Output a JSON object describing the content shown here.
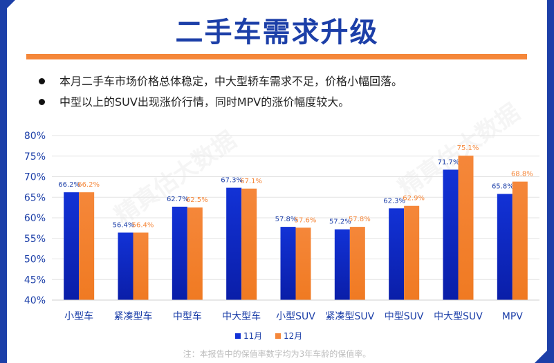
{
  "page": {
    "title": "二手车需求升级",
    "bullets": [
      "本月二手车市场价格总体稳定，中大型轿车需求不足，价格小幅回落。",
      "中型以上的SUV出现涨价行情，同时MPV的涨价幅度较大。"
    ],
    "footnote": "注：本报告中的保值率数字均为3年车龄的保值率。",
    "watermark": "精真估大数据"
  },
  "colors": {
    "brand": "#1c3fa8",
    "accent": "#f5873a",
    "series_blue": "#1232d6",
    "series_orange": "#f5873a"
  },
  "chart_data": {
    "type": "bar",
    "categories": [
      "小型车",
      "紧凑型车",
      "中型车",
      "中大型车",
      "小型SUV",
      "紧凑型SUV",
      "中型SUV",
      "中大型SUV",
      "MPV"
    ],
    "series": [
      {
        "name": "11月",
        "values": [
          66.2,
          56.4,
          62.7,
          67.3,
          57.8,
          57.2,
          62.3,
          71.7,
          65.8
        ],
        "color": "#1232d6"
      },
      {
        "name": "12月",
        "values": [
          66.2,
          56.4,
          62.5,
          67.1,
          57.6,
          57.8,
          62.9,
          75.1,
          68.8
        ],
        "color": "#f5873a"
      }
    ],
    "yticks": [
      "40%",
      "45%",
      "50%",
      "55%",
      "60%",
      "65%",
      "70%",
      "75%",
      "80%"
    ],
    "ylim": [
      40,
      80
    ],
    "value_suffix": "%",
    "legend_position": "bottom",
    "grid": true
  }
}
